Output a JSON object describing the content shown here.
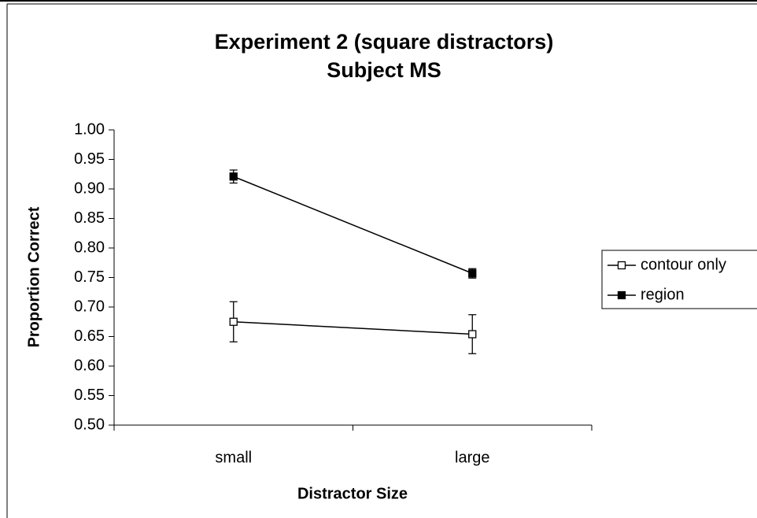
{
  "chart_data": {
    "type": "line",
    "title": [
      "Experiment 2 (square distractors)",
      "Subject MS"
    ],
    "x_label": "Distractor Size",
    "y_label": "Proportion Correct",
    "categories": [
      "small",
      "large"
    ],
    "series": [
      {
        "name": "contour only",
        "color": "#000000",
        "marker_fill": "#ffffff",
        "values": [
          0.675,
          0.654
        ],
        "errors": [
          0.034,
          0.033
        ]
      },
      {
        "name": "region",
        "color": "#000000",
        "marker_fill": "#000000",
        "values": [
          0.921,
          0.757
        ],
        "errors": [
          0.011,
          0.008
        ]
      }
    ],
    "ylim": [
      0.5,
      1.0
    ],
    "yticks": [
      {
        "value": 0.5,
        "label": "0.50"
      },
      {
        "value": 0.55,
        "label": "0.55"
      },
      {
        "value": 0.6,
        "label": "0.60"
      },
      {
        "value": 0.65,
        "label": "0.65"
      },
      {
        "value": 0.7,
        "label": "0.70"
      },
      {
        "value": 0.75,
        "label": "0.75"
      },
      {
        "value": 0.8,
        "label": "0.80"
      },
      {
        "value": 0.85,
        "label": "0.85"
      },
      {
        "value": 0.9,
        "label": "0.90"
      },
      {
        "value": 0.95,
        "label": "0.95"
      },
      {
        "value": 1.0,
        "label": "1.00"
      }
    ],
    "grid": false,
    "legend": "right"
  }
}
